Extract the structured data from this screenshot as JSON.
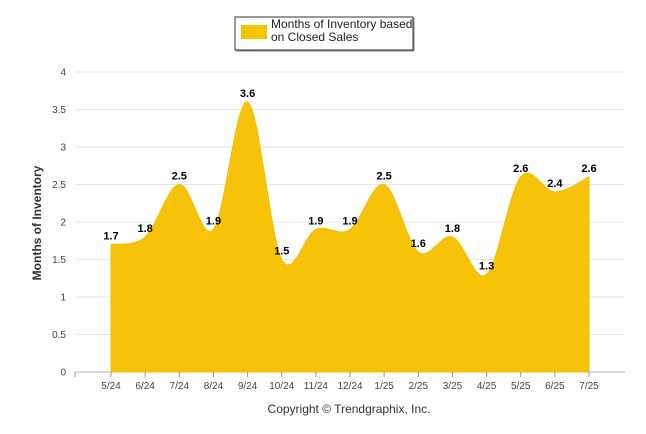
{
  "chart_data": {
    "type": "area",
    "categories": [
      "5/24",
      "6/24",
      "7/24",
      "8/24",
      "9/24",
      "10/24",
      "11/24",
      "12/24",
      "1/25",
      "2/25",
      "3/25",
      "4/25",
      "5/25",
      "6/25",
      "7/25"
    ],
    "series": [
      {
        "name": "Months of Inventory based on Closed Sales",
        "values": [
          1.7,
          1.8,
          2.5,
          1.9,
          3.6,
          1.5,
          1.9,
          1.9,
          2.5,
          1.6,
          1.8,
          1.3,
          2.6,
          2.4,
          2.6
        ],
        "color": "#F7C308"
      }
    ],
    "legend": {
      "line1": "Months of Inventory based",
      "line2": "on Closed Sales",
      "placement": "top-center"
    },
    "ylabel": "Months of Inventory",
    "xlabel": "",
    "ylim": [
      0,
      4
    ],
    "yticks": [
      "0",
      "0.5",
      "1",
      "1.5",
      "2",
      "2.5",
      "3",
      "3.5",
      "4"
    ],
    "grid": true,
    "footer": "Copyright © Trendgraphix, Inc."
  }
}
